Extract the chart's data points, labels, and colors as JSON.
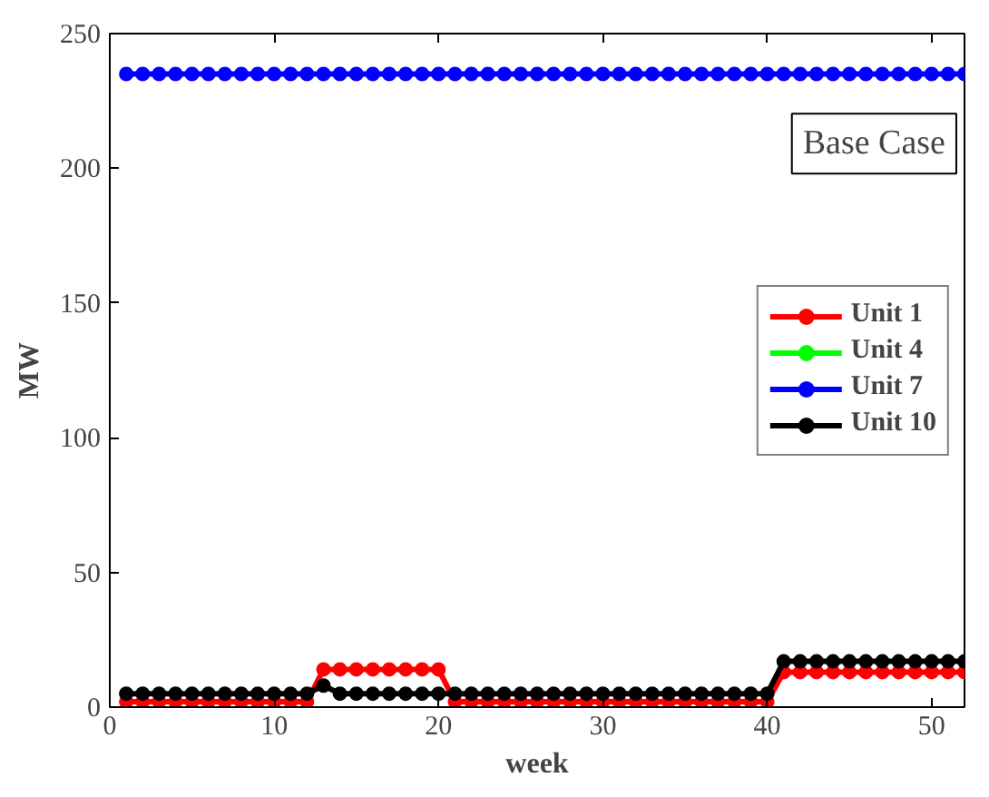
{
  "chart_data": {
    "type": "line",
    "xlabel": "week",
    "ylabel": "MW",
    "x": [
      1,
      2,
      3,
      4,
      5,
      6,
      7,
      8,
      9,
      10,
      11,
      12,
      13,
      14,
      15,
      16,
      17,
      18,
      19,
      20,
      21,
      22,
      23,
      24,
      25,
      26,
      27,
      28,
      29,
      30,
      31,
      32,
      33,
      34,
      35,
      36,
      37,
      38,
      39,
      40,
      41,
      42,
      43,
      44,
      45,
      46,
      47,
      48,
      49,
      50,
      51,
      52
    ],
    "series": [
      {
        "name": "Unit 1",
        "color": "#ff0000",
        "values": [
          2,
          2,
          2,
          2,
          2,
          2,
          2,
          2,
          2,
          2,
          2,
          2,
          14,
          14,
          14,
          14,
          14,
          14,
          14,
          14,
          2,
          2,
          2,
          2,
          2,
          2,
          2,
          2,
          2,
          2,
          2,
          2,
          2,
          2,
          2,
          2,
          2,
          2,
          2,
          2,
          13,
          13,
          13,
          13,
          13,
          13,
          13,
          13,
          13,
          13,
          13,
          13
        ]
      },
      {
        "name": "Unit 4",
        "color": "#00ff00",
        "values": [
          null,
          null,
          null,
          null,
          null,
          null,
          null,
          null,
          null,
          null,
          null,
          null,
          null,
          null,
          null,
          null,
          null,
          null,
          null,
          null,
          null,
          null,
          null,
          null,
          null,
          null,
          null,
          null,
          null,
          null,
          null,
          null,
          null,
          null,
          null,
          null,
          null,
          null,
          null,
          null,
          null,
          null,
          null,
          null,
          null,
          null,
          null,
          null,
          null,
          null,
          null,
          null
        ]
      },
      {
        "name": "Unit 7",
        "color": "#0000ff",
        "values": [
          235,
          235,
          235,
          235,
          235,
          235,
          235,
          235,
          235,
          235,
          235,
          235,
          235,
          235,
          235,
          235,
          235,
          235,
          235,
          235,
          235,
          235,
          235,
          235,
          235,
          235,
          235,
          235,
          235,
          235,
          235,
          235,
          235,
          235,
          235,
          235,
          235,
          235,
          235,
          235,
          235,
          235,
          235,
          235,
          235,
          235,
          235,
          235,
          235,
          235,
          235,
          235
        ]
      },
      {
        "name": "Unit 10",
        "color": "#000000",
        "values": [
          5,
          5,
          5,
          5,
          5,
          5,
          5,
          5,
          5,
          5,
          5,
          5,
          8,
          5,
          5,
          5,
          5,
          5,
          5,
          5,
          5,
          5,
          5,
          5,
          5,
          5,
          5,
          5,
          5,
          5,
          5,
          5,
          5,
          5,
          5,
          5,
          5,
          5,
          5,
          5,
          17,
          17,
          17,
          17,
          17,
          17,
          17,
          17,
          17,
          17,
          17,
          17
        ]
      }
    ],
    "annotations": [
      "Base Case"
    ],
    "xlim": [
      0,
      52
    ],
    "ylim": [
      0,
      250
    ],
    "xticks": [
      0,
      10,
      20,
      30,
      40,
      50
    ],
    "yticks": [
      0,
      50,
      100,
      150,
      200,
      250
    ],
    "grid": false,
    "legend": "right",
    "marker": "circle",
    "line_style": "solid"
  }
}
